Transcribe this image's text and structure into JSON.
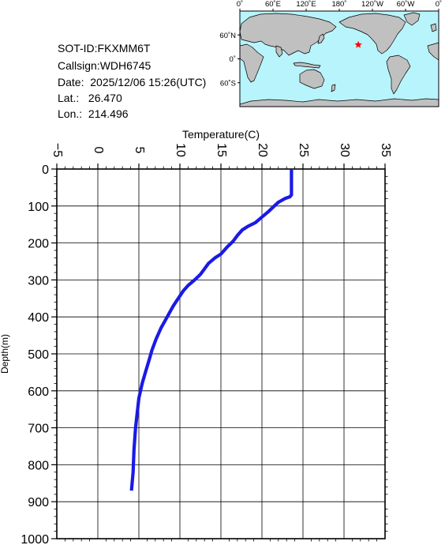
{
  "info": {
    "sot_id": "SOT-ID:FKXMM6T",
    "callsign": "Callsign:WDH6745",
    "date_label": "Date:",
    "date_value": "2025/12/06 15:26(UTC)",
    "lat_label": "Lat.:",
    "lat_value": "26.470",
    "lon_label": "Lon.:",
    "lon_value": "214.496"
  },
  "map": {
    "top_labels": [
      "0˚",
      "60˚E",
      "120˚E",
      "180˚",
      "120˚W",
      "60˚W",
      "0˚"
    ],
    "left_labels": [
      "60˚N",
      "0˚",
      "60˚S"
    ],
    "colors": {
      "ocean": "#b8f4fb",
      "land": "#c0c0c0",
      "marker": "#ff0000"
    },
    "marker": {
      "lon": 214.496,
      "lat": 26.47,
      "symbol": "star"
    }
  },
  "chart_data": {
    "type": "line",
    "xlabel": "Temperature(C)",
    "ylabel": "Depth(m)",
    "xlim": [
      -5,
      35
    ],
    "ylim": [
      1000,
      0
    ],
    "x_ticks": [
      -5,
      0,
      5,
      10,
      15,
      20,
      25,
      30,
      35
    ],
    "y_ticks": [
      0,
      100,
      200,
      300,
      400,
      500,
      600,
      700,
      800,
      900,
      1000
    ],
    "grid": true,
    "line_color": "#1a1ae6",
    "series": [
      {
        "temperature": [
          23.6,
          23.6,
          23.4,
          22.8,
          22.0,
          21.5,
          20.8,
          20.0,
          19.2,
          18.3,
          17.6,
          17.0,
          16.5,
          15.8,
          15.0,
          14.3,
          13.5,
          13.0,
          12.5,
          11.8,
          11.0,
          10.4,
          9.8,
          9.2,
          8.7,
          8.2,
          7.7,
          7.1,
          6.6,
          6.2,
          5.8,
          5.4,
          5.0,
          4.8,
          4.6,
          4.4,
          4.3,
          4.1
        ],
        "depth": [
          0,
          70,
          75,
          80,
          90,
          100,
          115,
          130,
          145,
          155,
          165,
          180,
          195,
          210,
          230,
          240,
          255,
          270,
          285,
          300,
          315,
          330,
          350,
          370,
          390,
          410,
          430,
          460,
          490,
          520,
          550,
          580,
          620,
          660,
          700,
          760,
          820,
          870
        ]
      }
    ]
  }
}
